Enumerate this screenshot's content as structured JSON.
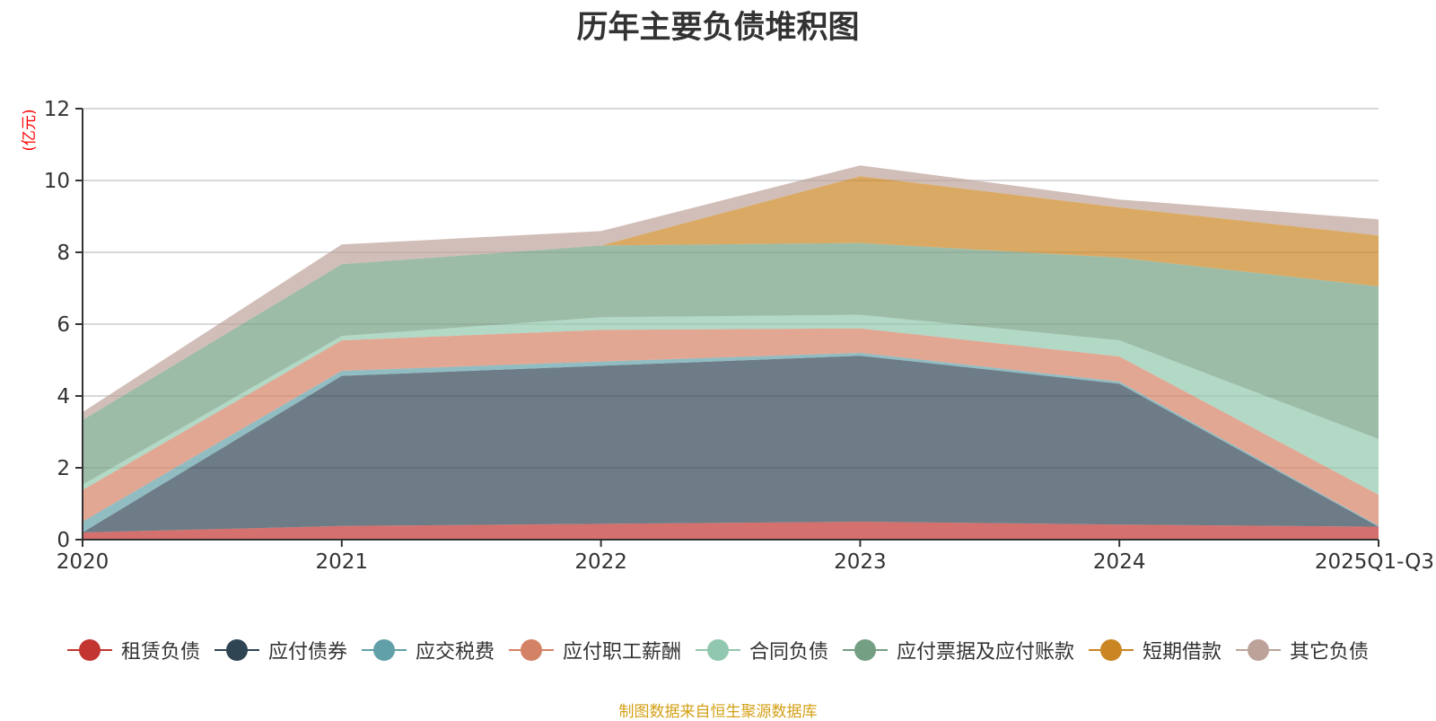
{
  "chart_data": {
    "type": "area",
    "stacked": true,
    "title": "历年主要负债堆积图",
    "ylabel": "(亿元)",
    "xlabel": "",
    "ylim": [
      0,
      12
    ],
    "yticks": [
      0,
      2,
      4,
      6,
      8,
      10,
      12
    ],
    "grid": true,
    "legend_position": "bottom",
    "categories": [
      "2020",
      "2021",
      "2022",
      "2023",
      "2024",
      "2025Q1-Q3"
    ],
    "series": [
      {
        "name": "租赁负债",
        "color": "#c23531",
        "values": [
          0.2,
          0.38,
          0.44,
          0.5,
          0.42,
          0.36
        ]
      },
      {
        "name": "应付债券",
        "color": "#2f4554",
        "values": [
          0.0,
          4.18,
          4.4,
          4.62,
          3.92,
          0.0
        ]
      },
      {
        "name": "应交税费",
        "color": "#61a0a8",
        "values": [
          0.3,
          0.14,
          0.12,
          0.08,
          0.06,
          0.03
        ]
      },
      {
        "name": "应付职工薪酬",
        "color": "#d48265",
        "values": [
          0.88,
          0.85,
          0.88,
          0.68,
          0.7,
          0.86
        ]
      },
      {
        "name": "合同负债",
        "color": "#91c7ae",
        "values": [
          0.15,
          0.12,
          0.35,
          0.38,
          0.45,
          1.55
        ]
      },
      {
        "name": "应付票据及应付账款",
        "color": "#749f83",
        "values": [
          1.8,
          2.0,
          2.0,
          2.0,
          2.3,
          4.25
        ]
      },
      {
        "name": "短期借款",
        "color": "#ca8622",
        "values": [
          0.0,
          0.0,
          0.0,
          1.86,
          1.4,
          1.42
        ]
      },
      {
        "name": "其它负债",
        "color": "#bda29a",
        "values": [
          0.22,
          0.55,
          0.4,
          0.3,
          0.22,
          0.45
        ]
      }
    ],
    "source_note": "制图数据来自恒生聚源数据库"
  }
}
